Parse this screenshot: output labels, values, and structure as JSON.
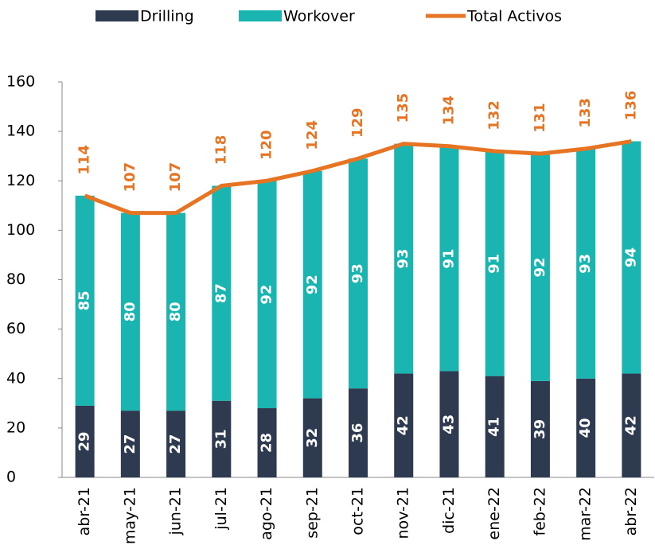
{
  "chart_data": {
    "type": "bar",
    "stacked": true,
    "categories": [
      "abr-21",
      "may-21",
      "jun-21",
      "jul-21",
      "ago-21",
      "sep-21",
      "oct-21",
      "nov-21",
      "dic-21",
      "ene-22",
      "feb-22",
      "mar-22",
      "abr-22"
    ],
    "series": [
      {
        "name": "Drilling",
        "color": "#2e3a4f",
        "values": [
          29,
          27,
          27,
          31,
          28,
          32,
          36,
          42,
          43,
          41,
          39,
          40,
          42
        ]
      },
      {
        "name": "Workover",
        "color": "#1ab5b0",
        "values": [
          85,
          80,
          80,
          87,
          92,
          92,
          93,
          93,
          91,
          91,
          92,
          93,
          94
        ]
      },
      {
        "name": "Total Activos",
        "type": "line",
        "color": "#e67422",
        "values": [
          114,
          107,
          107,
          118,
          120,
          124,
          129,
          135,
          134,
          132,
          131,
          133,
          136
        ]
      }
    ],
    "ylim": [
      0,
      160
    ],
    "yticks": [
      0,
      20,
      40,
      60,
      80,
      100,
      120,
      140,
      160
    ],
    "grid": false,
    "legend": "top"
  }
}
